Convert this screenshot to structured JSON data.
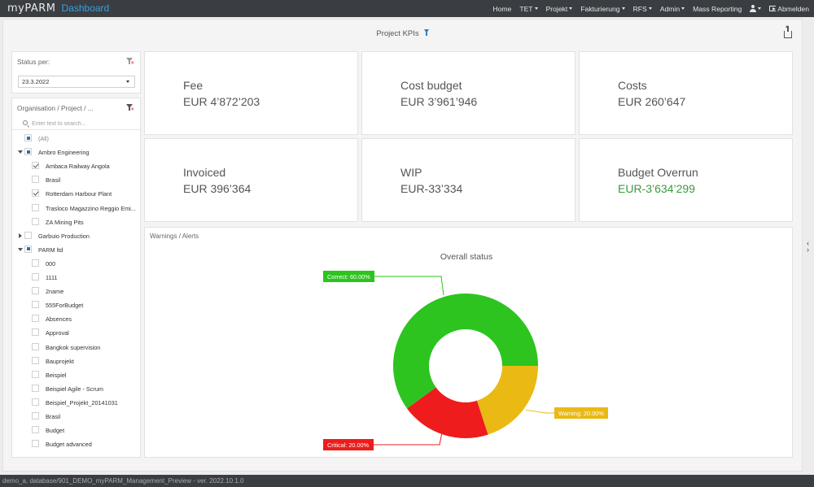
{
  "navbar": {
    "logo": "myPARM",
    "title": "Dashboard",
    "items": [
      {
        "label": "Home",
        "dropdown": false
      },
      {
        "label": "TET",
        "dropdown": true
      },
      {
        "label": "Projekt",
        "dropdown": true
      },
      {
        "label": "Fakturierung",
        "dropdown": true
      },
      {
        "label": "RFS",
        "dropdown": true
      },
      {
        "label": "Admin",
        "dropdown": true
      },
      {
        "label": "Mass Reporting",
        "dropdown": false
      }
    ],
    "user_icon": "user-icon",
    "logout_label": "Abmelden"
  },
  "header": {
    "title": "Project KPIs",
    "filter_icon": "filter-icon",
    "export_icon": "export-icon"
  },
  "status_filter": {
    "label": "Status per:",
    "date_value": "23.3.2022"
  },
  "org_filter": {
    "label": "Organisation / Project / ...",
    "search_placeholder": "Enter text to search...",
    "items": [
      {
        "label": "(All)",
        "level": 0,
        "check": "partial",
        "expander": "none",
        "muted": true
      },
      {
        "label": "Ambro Engineering",
        "level": 0,
        "check": "partial",
        "expander": "open"
      },
      {
        "label": "Ambaca Railway Angola",
        "level": 1,
        "check": "checked"
      },
      {
        "label": "Brasil",
        "level": 1,
        "check": "none"
      },
      {
        "label": "Rotterdam Harbour Plant",
        "level": 1,
        "check": "checked"
      },
      {
        "label": "Trasloco Magazzino Reggio Emi...",
        "level": 1,
        "check": "none"
      },
      {
        "label": "ZA Mining Pits",
        "level": 1,
        "check": "none"
      },
      {
        "label": "Garbuio Production",
        "level": 0,
        "check": "none",
        "expander": "closed"
      },
      {
        "label": "PARM ltd",
        "level": 0,
        "check": "partial",
        "expander": "open"
      },
      {
        "label": "000",
        "level": 1,
        "check": "none"
      },
      {
        "label": "1111",
        "level": 1,
        "check": "none"
      },
      {
        "label": "2name",
        "level": 1,
        "check": "none"
      },
      {
        "label": "555ForBudget",
        "level": 1,
        "check": "none"
      },
      {
        "label": "Absences",
        "level": 1,
        "check": "none"
      },
      {
        "label": "Approval",
        "level": 1,
        "check": "none"
      },
      {
        "label": "Bangkok supervision",
        "level": 1,
        "check": "none"
      },
      {
        "label": "Bauprojekt",
        "level": 1,
        "check": "none"
      },
      {
        "label": "Beispiel",
        "level": 1,
        "check": "none"
      },
      {
        "label": "Beispiel Agile - Scrum",
        "level": 1,
        "check": "none"
      },
      {
        "label": "Beispiel_Projekt_20141031",
        "level": 1,
        "check": "none"
      },
      {
        "label": "Brasil",
        "level": 1,
        "check": "none"
      },
      {
        "label": "Budget",
        "level": 1,
        "check": "none"
      },
      {
        "label": "Budget advanced",
        "level": 1,
        "check": "none"
      }
    ]
  },
  "kpis": [
    {
      "label": "Fee",
      "value": "EUR 4’872’203",
      "color": "#555555"
    },
    {
      "label": "Cost budget",
      "value": "EUR 3’961’946",
      "color": "#555555"
    },
    {
      "label": "Costs",
      "value": "EUR 260’647",
      "color": "#555555"
    },
    {
      "label": "Invoiced",
      "value": "EUR 396’364",
      "color": "#555555"
    },
    {
      "label": "WIP",
      "value": "EUR-33’334",
      "color": "#555555"
    },
    {
      "label": "Budget Overrun",
      "value": "EUR-3’634’299",
      "color": "#3c9a3c"
    }
  ],
  "alerts": {
    "title": "Warnings / Alerts"
  },
  "chart_data": {
    "type": "pie",
    "variant": "donut",
    "title": "Overall status",
    "slices": [
      {
        "name": "Correct",
        "value": 60,
        "label": "Correct: 60.00%",
        "color": "#2dc41f"
      },
      {
        "name": "Warning",
        "value": 20,
        "label": "Warning: 20.00%",
        "color": "#eab914"
      },
      {
        "name": "Critical",
        "value": 20,
        "label": "Critical: 20.00%",
        "color": "#ee1c1c"
      }
    ],
    "start_angle_deg": 90,
    "direction": "clockwise",
    "legend": "none"
  },
  "footer": {
    "text": "demo_a, database/901_DEMO_myPARM_Management_Preview - ver. 2022.10.1.0"
  }
}
